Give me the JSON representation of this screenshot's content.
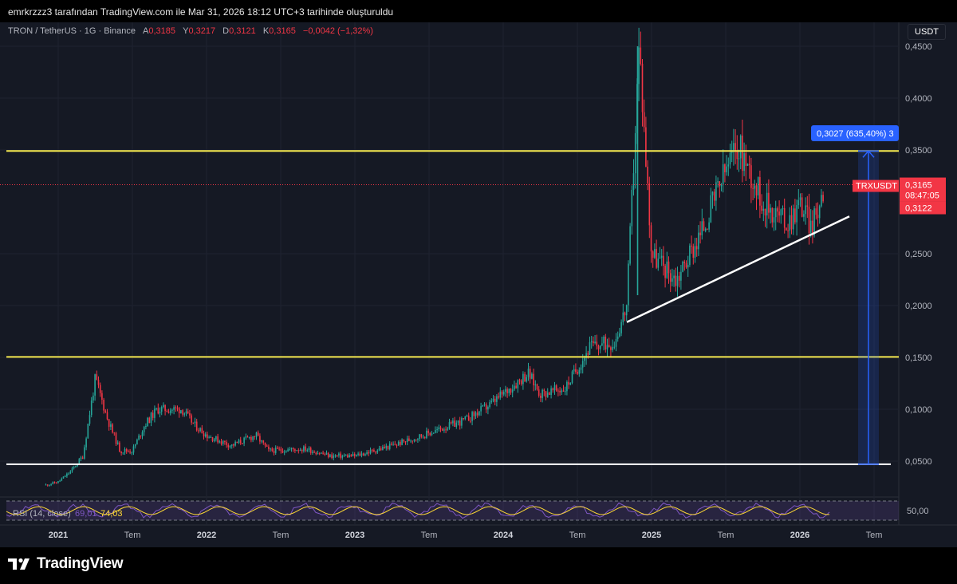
{
  "author_line": "emrkrzzz3 tarafından TradingView.com ile Mar 31, 2026 18:12 UTC+3 tarihinde oluşturuldu",
  "legend": {
    "symbol": "TRON / TetherUS · 1G · Binance",
    "open_label": "A",
    "open_value": "0,3185",
    "high_label": "Y",
    "high_value": "0,3217",
    "low_label": "D",
    "low_value": "0,3121",
    "close_label": "K",
    "close_value": "0,3165",
    "change": "−0,0042 (−1,32%)"
  },
  "currency_button": "USDT",
  "price_axis_labels": [
    "0,4500",
    "0,4000",
    "0,3500",
    "0,2500",
    "0,2000",
    "0,1500",
    "0,1000",
    "0,0500"
  ],
  "time_axis_labels": [
    {
      "label": "2021",
      "bold": true
    },
    {
      "label": "Tem",
      "bold": false
    },
    {
      "label": "2022",
      "bold": true
    },
    {
      "label": "Tem",
      "bold": false
    },
    {
      "label": "2023",
      "bold": true
    },
    {
      "label": "Tem",
      "bold": false
    },
    {
      "label": "2024",
      "bold": true
    },
    {
      "label": "Tem",
      "bold": false
    },
    {
      "label": "2025",
      "bold": true
    },
    {
      "label": "Tem",
      "bold": false
    },
    {
      "label": "2026",
      "bold": true
    },
    {
      "label": "Tem",
      "bold": false
    }
  ],
  "price_tag": {
    "symbol": "TRXUSDT",
    "price": "0,3165",
    "countdown": "08:47:05",
    "low": "0,3122"
  },
  "measure_tag": "0,3027 (635,40%) 3",
  "rsi": {
    "legend_name": "RSI (14, close)",
    "value_1": "69,01",
    "value_2": "74,03",
    "axis_label": "50,00"
  },
  "brand": "TradingView",
  "colors": {
    "up": "#26a69a",
    "down": "#f23645",
    "yellow": "#f5e94f",
    "blue": "#2962ff",
    "rsi": "#7e57c2",
    "rsi_ma": "#fdd835",
    "background": "#151924"
  },
  "chart_data": {
    "type": "candlestick",
    "symbol": "TRXUSDT",
    "exchange": "Binance",
    "interval": "1G",
    "ylim": [
      0.02,
      0.45
    ],
    "last_price": 0.3165,
    "ohlc_last": {
      "open": 0.3185,
      "high": 0.3217,
      "low": 0.3121,
      "close": 0.3165
    },
    "price_path": [
      {
        "x": "2020-12",
        "y": 0.027
      },
      {
        "x": "2021-01",
        "y": 0.03
      },
      {
        "x": "2021-02",
        "y": 0.04
      },
      {
        "x": "2021-03",
        "y": 0.055
      },
      {
        "x": "2021-04",
        "y": 0.13
      },
      {
        "x": "2021-05",
        "y": 0.09
      },
      {
        "x": "2021-06",
        "y": 0.06
      },
      {
        "x": "2021-07",
        "y": 0.06
      },
      {
        "x": "2021-08",
        "y": 0.085
      },
      {
        "x": "2021-09",
        "y": 0.1
      },
      {
        "x": "2021-11",
        "y": 0.1
      },
      {
        "x": "2021-12",
        "y": 0.085
      },
      {
        "x": "2022-01",
        "y": 0.075
      },
      {
        "x": "2022-03",
        "y": 0.065
      },
      {
        "x": "2022-05",
        "y": 0.075
      },
      {
        "x": "2022-06",
        "y": 0.06
      },
      {
        "x": "2022-09",
        "y": 0.062
      },
      {
        "x": "2022-11",
        "y": 0.055
      },
      {
        "x": "2023-01",
        "y": 0.055
      },
      {
        "x": "2023-04",
        "y": 0.065
      },
      {
        "x": "2023-07",
        "y": 0.077
      },
      {
        "x": "2023-10",
        "y": 0.09
      },
      {
        "x": "2023-12",
        "y": 0.105
      },
      {
        "x": "2024-03",
        "y": 0.135
      },
      {
        "x": "2024-04",
        "y": 0.115
      },
      {
        "x": "2024-06",
        "y": 0.12
      },
      {
        "x": "2024-08",
        "y": 0.16
      },
      {
        "x": "2024-10",
        "y": 0.165
      },
      {
        "x": "2024-11",
        "y": 0.2
      },
      {
        "x": "2024-12",
        "y": 0.45
      },
      {
        "x": "2025-01",
        "y": 0.25
      },
      {
        "x": "2025-03",
        "y": 0.225
      },
      {
        "x": "2025-05",
        "y": 0.27
      },
      {
        "x": "2025-07",
        "y": 0.33
      },
      {
        "x": "2025-08",
        "y": 0.355
      },
      {
        "x": "2025-10",
        "y": 0.3
      },
      {
        "x": "2025-12",
        "y": 0.28
      },
      {
        "x": "2026-01",
        "y": 0.3
      },
      {
        "x": "2026-02",
        "y": 0.275
      },
      {
        "x": "2026-03",
        "y": 0.3165
      }
    ],
    "horizontal_levels": [
      {
        "price": 0.349,
        "color": "yellow"
      },
      {
        "price": 0.1505,
        "color": "yellow"
      },
      {
        "price": 0.047,
        "color": "white"
      }
    ],
    "trendline": {
      "from": {
        "x": "2024-11",
        "y": 0.184
      },
      "to": {
        "x": "2026-05",
        "y": 0.286
      },
      "color": "white"
    },
    "measure_range": {
      "from_price": 0.047,
      "to_price": 0.349,
      "change": 0.3027,
      "change_percent": 635.4
    },
    "rsi_length": 14
  }
}
